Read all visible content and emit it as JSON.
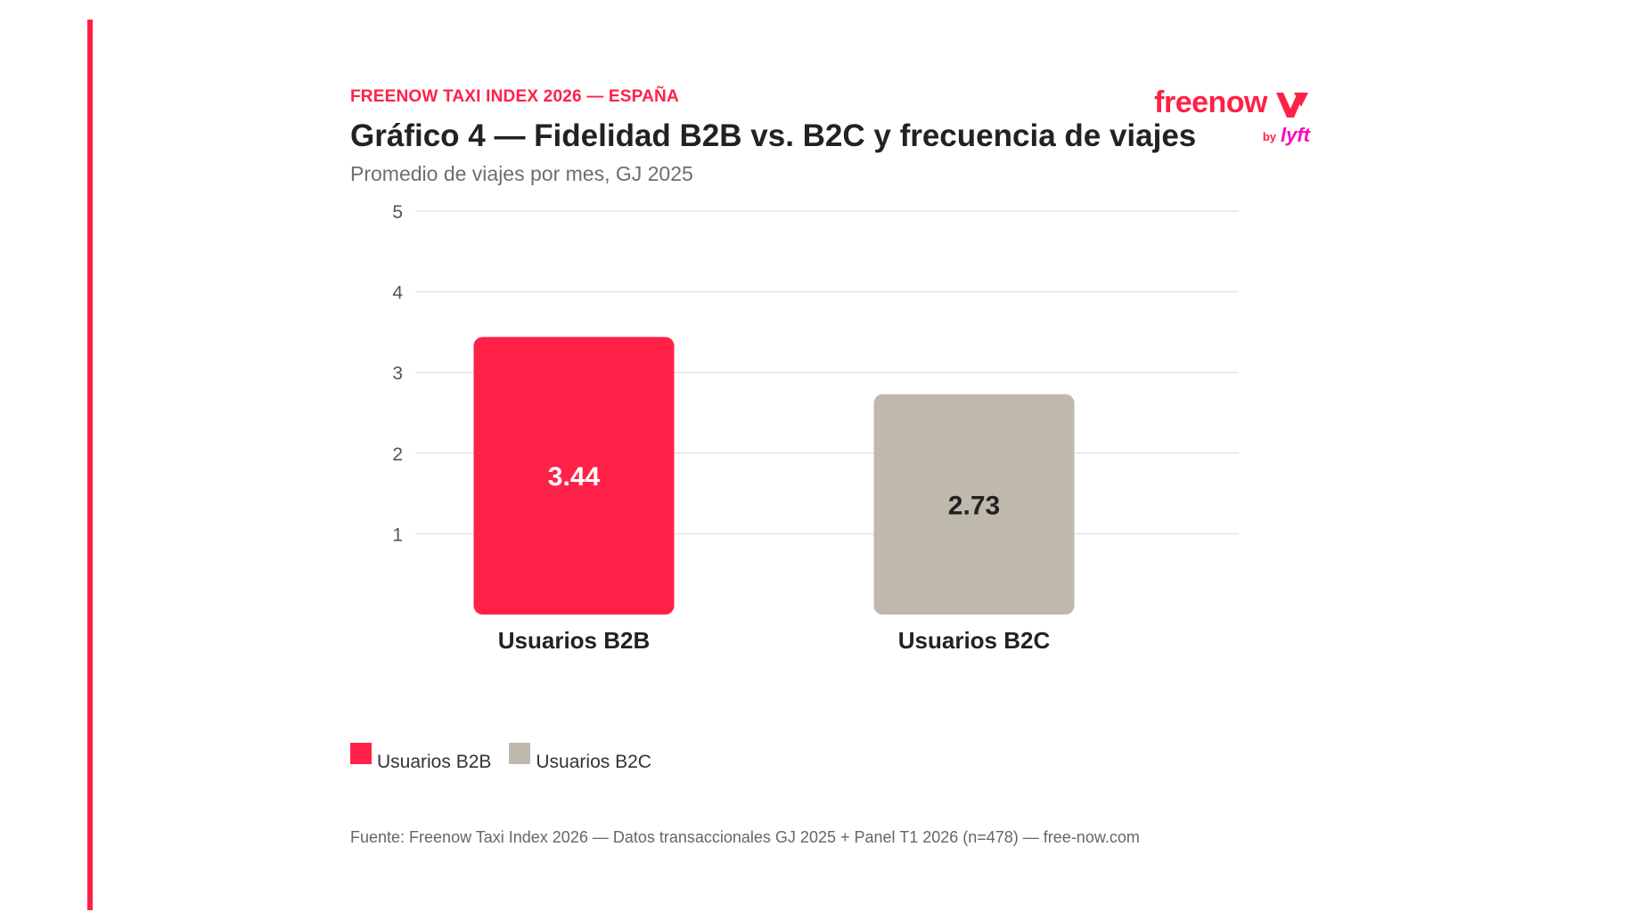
{
  "header": {
    "kicker": "FREENOW TAXI INDEX 2026 — ESPAÑA",
    "title": "Gráfico 4 — Fidelidad B2B vs. B2C y frecuencia de viajes",
    "subtitle": "Promedio de viajes por mes, GJ 2025"
  },
  "logo": {
    "word": "freenow",
    "by": "by",
    "partner": "lyft"
  },
  "colors": {
    "accent": "#ff2147",
    "b2b": "#ff2147",
    "b2c": "#bfb8ad",
    "lyft": "#ff00bf",
    "grid": "#e3e3e3"
  },
  "chart_data": {
    "type": "bar",
    "title": "Gráfico 4 — Fidelidad B2B vs. B2C y frecuencia de viajes",
    "subtitle": "Promedio de viajes por mes, GJ 2025",
    "categories": [
      "Usuarios B2B",
      "Usuarios B2C"
    ],
    "values": [
      3.44,
      2.73
    ],
    "data_labels": [
      "3.44",
      "2.73"
    ],
    "ylim": [
      0,
      5
    ],
    "yticks": [
      1,
      2,
      3,
      4,
      5
    ],
    "grid": true,
    "legend_position": "bottom-left",
    "xlabel": "",
    "ylabel": ""
  },
  "legend": [
    {
      "label": "Usuarios B2B",
      "color": "#ff2147"
    },
    {
      "label": "Usuarios B2C",
      "color": "#bfb8ad"
    }
  ],
  "source": "Fuente: Freenow Taxi Index 2026 — Datos transaccionales GJ 2025 + Panel T1 2026 (n=478) — free-now.com"
}
